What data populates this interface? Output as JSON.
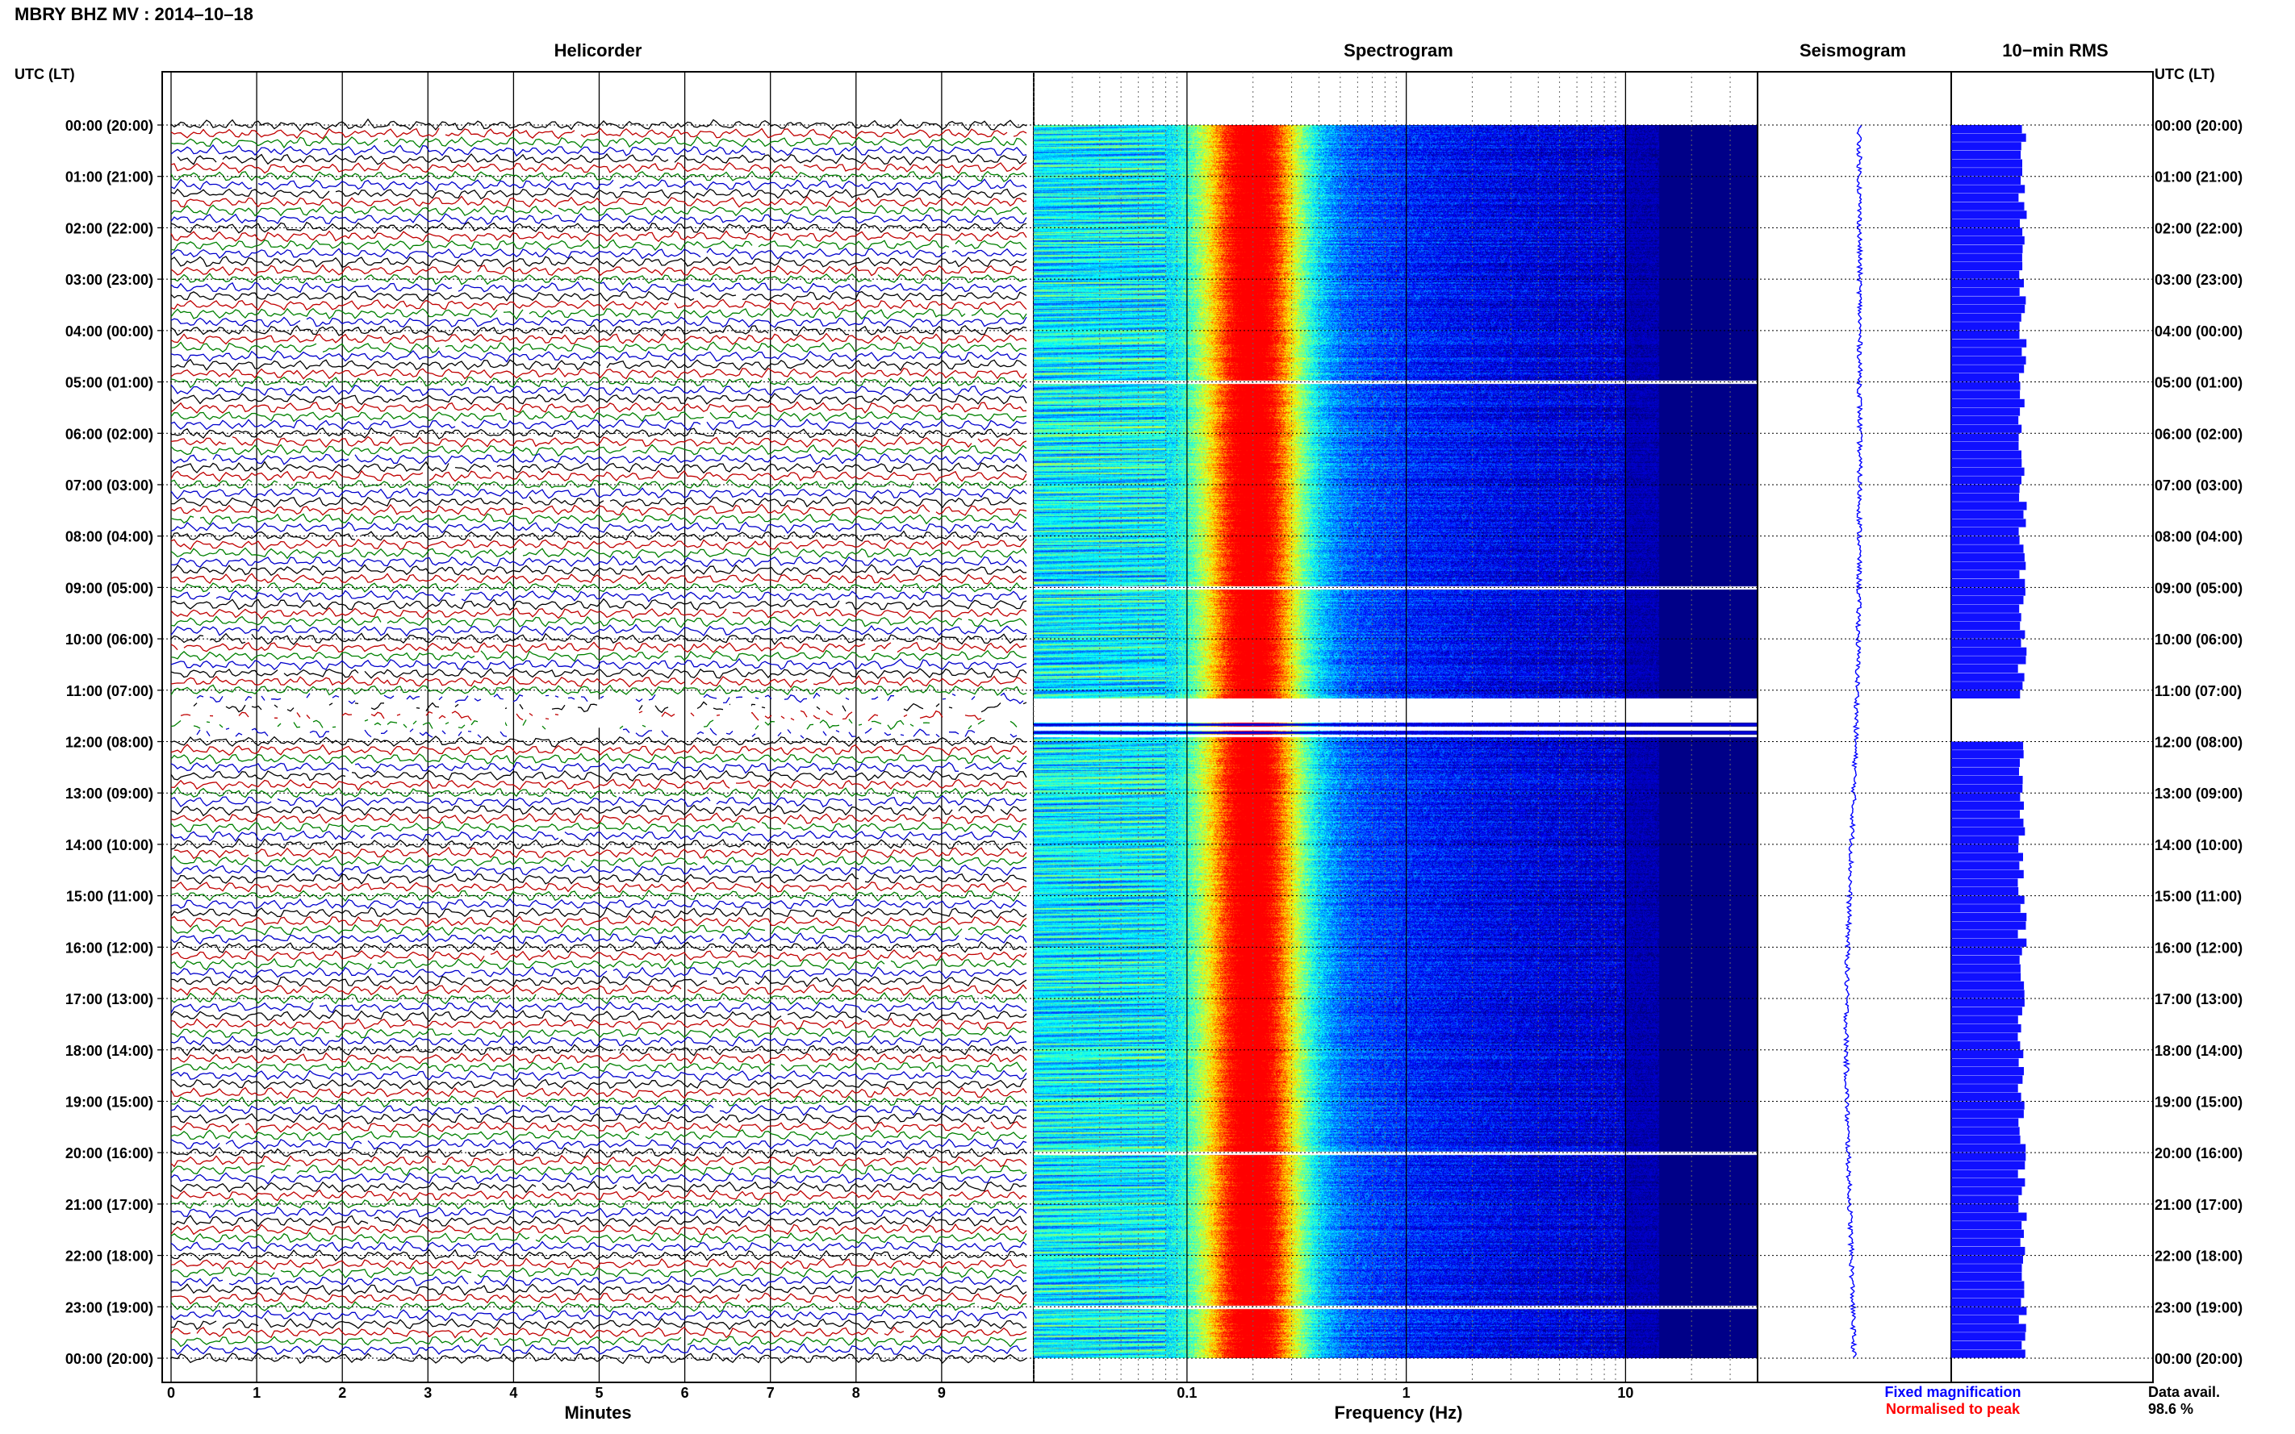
{
  "header": {
    "title": "MBRY BHZ MV : 2014–10–18"
  },
  "panels": {
    "helicorder": "Helicorder",
    "spectrogram": "Spectrogram",
    "seismogram": "Seismogram",
    "rms": "10−min RMS"
  },
  "axis_labels": {
    "time_left": "UTC (LT)",
    "time_right": "UTC (LT)",
    "minutes": "Minutes",
    "frequency": "Frequency (Hz)"
  },
  "time_ticks": [
    "00:00 (20:00)",
    "01:00 (21:00)",
    "02:00 (22:00)",
    "03:00 (23:00)",
    "04:00 (00:00)",
    "05:00 (01:00)",
    "06:00 (02:00)",
    "07:00 (03:00)",
    "08:00 (04:00)",
    "09:00 (05:00)",
    "10:00 (06:00)",
    "11:00 (07:00)",
    "12:00 (08:00)",
    "13:00 (09:00)",
    "14:00 (10:00)",
    "15:00 (11:00)",
    "16:00 (12:00)",
    "17:00 (13:00)",
    "18:00 (14:00)",
    "19:00 (15:00)",
    "20:00 (16:00)",
    "21:00 (17:00)",
    "22:00 (18:00)",
    "23:00 (19:00)",
    "00:00 (20:00)"
  ],
  "minute_ticks": [
    "0",
    "1",
    "2",
    "3",
    "4",
    "5",
    "6",
    "7",
    "8",
    "9"
  ],
  "freq_ticks": [
    "0.1",
    "1",
    "10"
  ],
  "legend": {
    "fixed": "Fixed magnification",
    "normalised": "Normalised to peak",
    "fixed_color": "#0000ff",
    "normalised_color": "#ff0000"
  },
  "availability": {
    "label": "Data avail.",
    "value": "98.6 %"
  },
  "chart_data": {
    "type": "heatmap",
    "title": "MBRY BHZ MV : 2014–10–18",
    "hours": 24,
    "lines_per_hour": 6,
    "minutes_per_line": 10,
    "trace_colors": [
      "#000000",
      "#c00000",
      "#008000",
      "#0000cc"
    ],
    "helicorder_xlim": [
      0,
      10
    ],
    "spectrogram_xscale": "log",
    "spectrogram_xlim": [
      0.02,
      40
    ],
    "spectrogram_peak_hz": 0.2,
    "spectrogram_colormap": [
      "#00007f",
      "#0000ff",
      "#0080ff",
      "#00ffff",
      "#80ff80",
      "#ffff00",
      "#ff8000",
      "#ff0000"
    ],
    "data_gaps_utc": [
      "05:00",
      "09:00",
      "11:00-12:00",
      "20:00",
      "23:00"
    ],
    "rms_level": 0.8,
    "data_availability_pct": 98.6
  }
}
